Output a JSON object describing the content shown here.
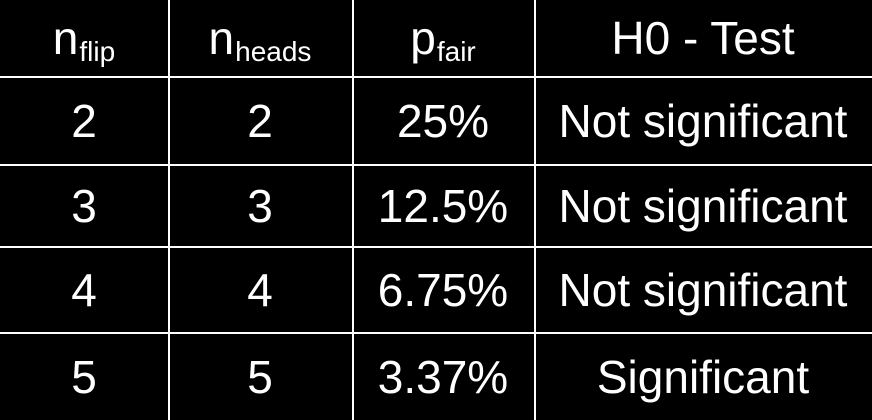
{
  "table": {
    "headers": [
      {
        "main": "n",
        "sub": "flip"
      },
      {
        "main": "n",
        "sub": "heads"
      },
      {
        "main": "p",
        "sub": "fair"
      },
      {
        "main": "H0 - Test",
        "sub": ""
      }
    ],
    "rows": [
      [
        "2",
        "2",
        "25%",
        "Not significant"
      ],
      [
        "3",
        "3",
        "12.5%",
        "Not significant"
      ],
      [
        "4",
        "4",
        "6.75%",
        "Not significant"
      ],
      [
        "5",
        "5",
        "3.37%",
        "Significant"
      ]
    ]
  },
  "colors": {
    "background": "#000000",
    "text": "#ffffff",
    "grid": "#ffffff"
  }
}
